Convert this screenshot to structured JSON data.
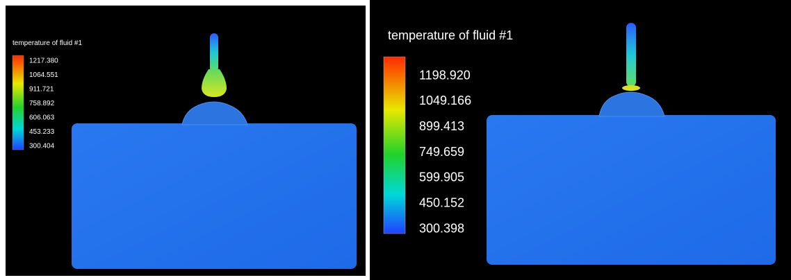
{
  "panels": [
    {
      "legend": {
        "title": "temperature of fluid #1",
        "labels": [
          "1217.380",
          "1064.551",
          "911.721",
          "758.892",
          "606.063",
          "453.233",
          "300.404"
        ]
      }
    },
    {
      "legend": {
        "title": "temperature of fluid #1",
        "labels": [
          "1198.920",
          "1049.166",
          "899.413",
          "749.659",
          "599.905",
          "450.152",
          "300.398"
        ]
      }
    }
  ]
}
